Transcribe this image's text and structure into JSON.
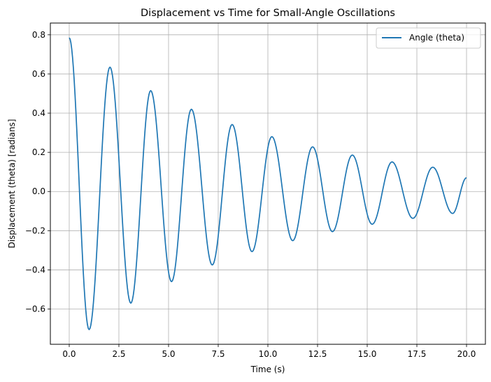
{
  "chart_data": {
    "type": "line",
    "title": "Displacement vs Time for Small-Angle Oscillations",
    "xlabel": "Time (s)",
    "ylabel": "Displacement (theta) [radians]",
    "xlim": [
      -0.95,
      20.95
    ],
    "ylim": [
      -0.78,
      0.86
    ],
    "xticks": [
      0.0,
      2.5,
      5.0,
      7.5,
      10.0,
      12.5,
      15.0,
      17.5,
      20.0
    ],
    "xtick_labels": [
      "0.0",
      "2.5",
      "5.0",
      "7.5",
      "10.0",
      "12.5",
      "15.0",
      "17.5",
      "20.0"
    ],
    "yticks": [
      -0.6,
      -0.4,
      -0.2,
      0.0,
      0.2,
      0.4,
      0.6,
      0.8
    ],
    "ytick_labels": [
      "−0.6",
      "−0.4",
      "−0.2",
      "0.0",
      "0.2",
      "0.4",
      "0.6",
      "0.8"
    ],
    "grid": true,
    "legend_position": "top-right",
    "series": [
      {
        "name": "Angle (theta)",
        "color": "#1f77b4",
        "x": [
          0.0,
          1.0,
          2.05,
          3.1,
          4.1,
          5.15,
          6.15,
          7.2,
          8.2,
          9.2,
          10.2,
          11.25,
          12.25,
          13.25,
          14.25,
          15.25,
          16.25,
          17.3,
          18.3,
          19.3,
          20.0
        ],
        "y": [
          0.785,
          -0.705,
          0.635,
          -0.57,
          0.515,
          -0.46,
          0.42,
          -0.375,
          0.342,
          -0.307,
          0.28,
          -0.251,
          0.228,
          -0.205,
          0.186,
          -0.167,
          0.151,
          -0.137,
          0.124,
          -0.112,
          0.07
        ]
      }
    ]
  }
}
